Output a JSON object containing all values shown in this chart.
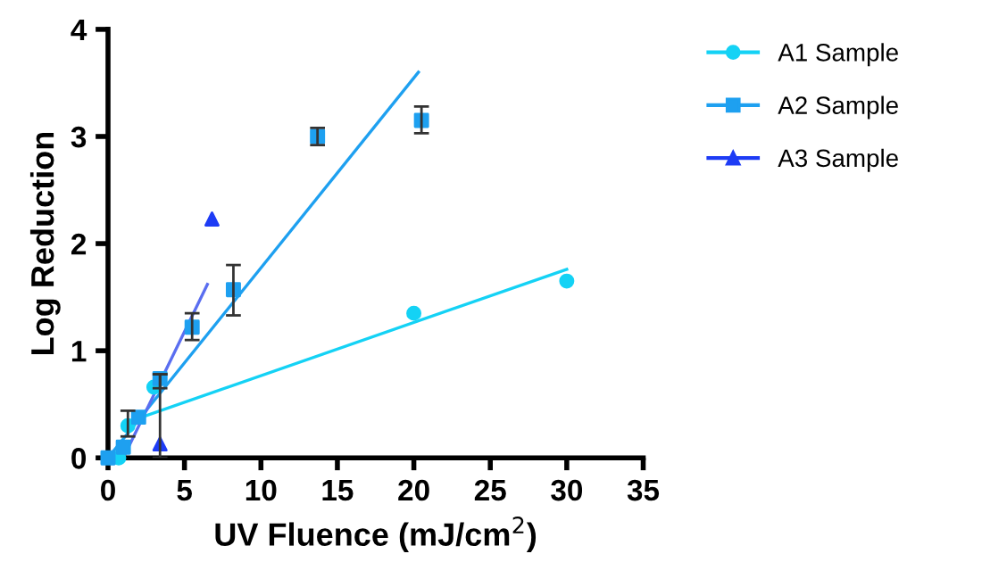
{
  "chart_data": {
    "type": "scatter",
    "xlabel": "UV Fluence (mJ/cm$^{2}$)",
    "ylabel": "Log Reduction",
    "xlim": [
      0,
      35
    ],
    "ylim": [
      0,
      4
    ],
    "xticks": [
      0,
      5,
      10,
      15,
      20,
      25,
      30,
      35
    ],
    "yticks": [
      0,
      1,
      2,
      3,
      4
    ],
    "grid": false,
    "legend": "right",
    "series": [
      {
        "name": "A1 Sample",
        "color": "#14d2f5",
        "marker": "circle",
        "x": [
          0.7,
          1.3,
          2,
          3,
          20,
          30
        ],
        "values": [
          0,
          0.3,
          null,
          0.66,
          1.35,
          1.65
        ],
        "errors": [
          null,
          [
            0.2,
            0.44
          ],
          null,
          null,
          null,
          null
        ]
      },
      {
        "name": "A2 Sample",
        "color": "#1ea0f0",
        "marker": "square",
        "x": [
          0,
          1,
          2,
          3.4,
          5.5,
          8.2,
          13.7,
          20.5
        ],
        "values": [
          0,
          0.1,
          0.38,
          0.74,
          1.22,
          1.57,
          3.0,
          3.15
        ],
        "errors": [
          null,
          null,
          null,
          [
            0.65,
            0.78
          ],
          [
            1.1,
            1.35
          ],
          [
            1.33,
            1.8
          ],
          [
            2.92,
            3.08
          ],
          [
            3.03,
            3.28
          ]
        ]
      },
      {
        "name": "A3 Sample",
        "color": "#1e3cf5",
        "marker": "triangle",
        "x": [
          3.4,
          6.8
        ],
        "values": [
          0.13,
          2.23
        ],
        "errors": [
          [
            0,
            0.78
          ],
          null
        ]
      },
      {
        "type": "line",
        "color": "#14d2f5",
        "x": [
          2,
          30
        ],
        "values": [
          0.37,
          1.76
        ]
      },
      {
        "type": "line",
        "color": "#1ea0f0",
        "x": [
          0,
          20.3
        ],
        "values": [
          0,
          3.6
        ]
      },
      {
        "type": "line",
        "color": "#5a6ef0",
        "x": [
          1,
          6.5
        ],
        "values": [
          0,
          1.62
        ]
      }
    ]
  }
}
